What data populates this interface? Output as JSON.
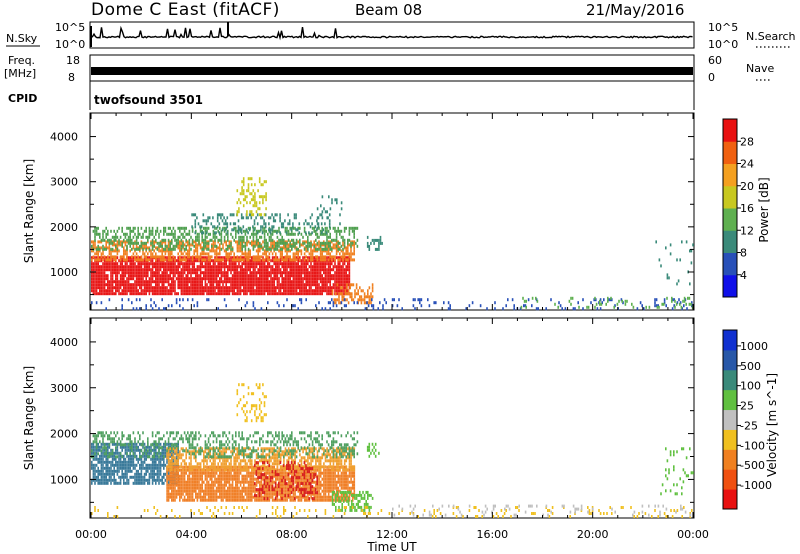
{
  "header": {
    "site": "Dome C East (fitACF)",
    "beam": "Beam 08",
    "date": "21/May/2016"
  },
  "top_panels": {
    "nsky_label": "N.Sky",
    "nsearch_label": "N.Search",
    "nsky_tick_hi": "10^5",
    "nsky_tick_lo": "10^0",
    "nsearch_tick_hi": "10^5",
    "nsearch_tick_lo": "10^0",
    "freq_label_1": "Freq.",
    "freq_label_2": "[MHz]",
    "freq_tick_hi": "18",
    "freq_tick_lo": "8",
    "nave_label": "Nave",
    "nave_tick_hi": "60",
    "nave_tick_lo": "0",
    "cpid_label": "CPID",
    "cpid_value": "twofsound 3501",
    "freq_level": 0.2,
    "nave_level": 0.18
  },
  "chart_data": [
    {
      "type": "heatmap",
      "title": "",
      "quantity": "Power",
      "ylabel": "Slant Range [km]",
      "xlabel": "Time UT",
      "xticks": [
        "00:00",
        "04:00",
        "08:00",
        "12:00",
        "16:00",
        "20:00",
        "00:00"
      ],
      "yticks": [
        1000,
        2000,
        3000,
        4000
      ],
      "ylim": [
        180,
        4500
      ],
      "xlim_hours": [
        0,
        24
      ],
      "colorbar_label": "Power [dB]",
      "colorbar_ticks": [
        "4",
        "8",
        "12",
        "16",
        "20",
        "24",
        "28"
      ],
      "colorbar_colors": [
        "#1010e8",
        "#2850b8",
        "#3a8a7a",
        "#5fb050",
        "#c8c820",
        "#f4a020",
        "#f06010",
        "#e81010"
      ],
      "regions": [
        {
          "t0": 0.0,
          "t1": 10.3,
          "r0": 550,
          "r1": 1350,
          "color": "#e81818",
          "density": 0.9
        },
        {
          "t0": 0.0,
          "t1": 10.5,
          "r0": 1250,
          "r1": 1700,
          "color": "#f08020",
          "density": 0.6
        },
        {
          "t0": 0.0,
          "t1": 10.6,
          "r0": 1500,
          "r1": 2000,
          "color": "#50a050",
          "density": 0.45
        },
        {
          "t0": 4.0,
          "t1": 9.5,
          "r0": 1900,
          "r1": 2300,
          "color": "#3a8a7a",
          "density": 0.25
        },
        {
          "t0": 5.8,
          "t1": 7.0,
          "r0": 2300,
          "r1": 3100,
          "color": "#c8c820",
          "density": 0.3
        },
        {
          "t0": 9.0,
          "t1": 10.0,
          "r0": 2100,
          "r1": 2700,
          "color": "#3a8a7a",
          "density": 0.2
        },
        {
          "t0": 9.6,
          "t1": 11.2,
          "r0": 300,
          "r1": 750,
          "color": "#f08020",
          "density": 0.5
        },
        {
          "t0": 11.0,
          "t1": 11.6,
          "r0": 1500,
          "r1": 1800,
          "color": "#3a8a7a",
          "density": 0.4
        },
        {
          "t0": 0.0,
          "t1": 24.0,
          "r0": 200,
          "r1": 420,
          "color": "#2850b8",
          "density": 0.12
        },
        {
          "t0": 17.0,
          "t1": 24.0,
          "r0": 200,
          "r1": 450,
          "color": "#5fb050",
          "density": 0.12
        },
        {
          "t0": 22.5,
          "t1": 24.0,
          "r0": 700,
          "r1": 1700,
          "color": "#3a8a7a",
          "density": 0.08
        }
      ]
    },
    {
      "type": "heatmap",
      "title": "",
      "quantity": "Velocity",
      "ylabel": "Slant Range [km]",
      "xlabel": "Time UT",
      "xticks": [
        "00:00",
        "04:00",
        "08:00",
        "12:00",
        "16:00",
        "20:00",
        "00:00"
      ],
      "yticks": [
        1000,
        2000,
        3000,
        4000
      ],
      "ylim": [
        180,
        4500
      ],
      "xlim_hours": [
        0,
        24
      ],
      "colorbar_label": "Velocity [m s^-1]",
      "colorbar_ticks": [
        "1000",
        "500",
        "100",
        "25",
        "-25",
        "-100",
        "-500",
        "-1000"
      ],
      "colorbar_colors": [
        "#1030d0",
        "#2858a8",
        "#3a8a7a",
        "#60c040",
        "#c0c0c0",
        "#f0c020",
        "#f08020",
        "#f05010",
        "#e81010"
      ],
      "regions": [
        {
          "t0": 0.0,
          "t1": 3.5,
          "r0": 900,
          "r1": 1800,
          "color": "#3a7a9a",
          "density": 0.75
        },
        {
          "t0": 3.0,
          "t1": 10.5,
          "r0": 550,
          "r1": 1300,
          "color": "#f08028",
          "density": 0.9
        },
        {
          "t0": 3.0,
          "t1": 10.5,
          "r0": 1200,
          "r1": 1700,
          "color": "#f0a030",
          "density": 0.6
        },
        {
          "t0": 6.5,
          "t1": 9.0,
          "r0": 600,
          "r1": 1400,
          "color": "#d82020",
          "density": 0.35
        },
        {
          "t0": 0.0,
          "t1": 10.6,
          "r0": 1500,
          "r1": 2050,
          "color": "#50a060",
          "density": 0.35
        },
        {
          "t0": 5.8,
          "t1": 7.0,
          "r0": 2300,
          "r1": 3100,
          "color": "#f0c020",
          "density": 0.25
        },
        {
          "t0": 9.6,
          "t1": 11.2,
          "r0": 300,
          "r1": 750,
          "color": "#60c040",
          "density": 0.5
        },
        {
          "t0": 11.0,
          "t1": 11.6,
          "r0": 1500,
          "r1": 1800,
          "color": "#60c040",
          "density": 0.4
        },
        {
          "t0": 0.0,
          "t1": 24.0,
          "r0": 200,
          "r1": 420,
          "color": "#f0c020",
          "density": 0.12
        },
        {
          "t0": 12.0,
          "t1": 24.0,
          "r0": 200,
          "r1": 450,
          "color": "#c0c0c0",
          "density": 0.1
        },
        {
          "t0": 22.5,
          "t1": 24.0,
          "r0": 700,
          "r1": 1700,
          "color": "#60c040",
          "density": 0.08
        }
      ]
    }
  ]
}
